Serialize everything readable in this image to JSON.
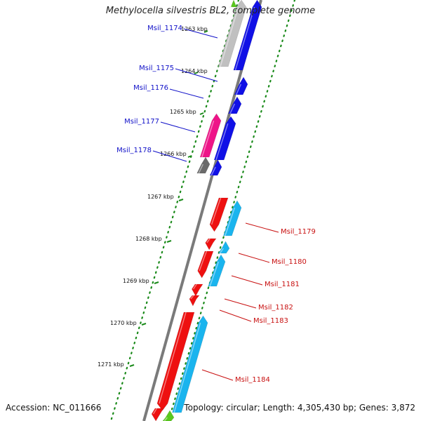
{
  "header": {
    "title": "Methylocella silvestris BL2, complete genome"
  },
  "footer": {
    "accession": "Accession: NC_011666",
    "summary": "Topology: circular; Length: 4,305,430 bp; Genes: 3,872"
  },
  "colors": {
    "backbone": "#8c8c8c",
    "forward_label": "#1010c8",
    "reverse_label": "#c81010",
    "tick": "#1a8a1a",
    "blue": "#1010e6",
    "cyan": "#1ab4ee",
    "red": "#ee1010",
    "magenta": "#ee1488",
    "gray": "#c0c0c0",
    "darkgray": "#6a6a6a",
    "green": "#5ac81e"
  },
  "kbp_ticks": {
    "inner": [
      "1263 kbp",
      "1264 kbp",
      "1265 kbp",
      "1266 kbp"
    ],
    "outer": [
      "1267 kbp",
      "1268 kbp",
      "1269 kbp",
      "1270 kbp",
      "1271 kbp"
    ]
  },
  "genes_top": [
    "Msil_1174",
    "Msil_1175",
    "Msil_1176",
    "Msil_1177",
    "Msil_1178"
  ],
  "genes_bottom": [
    "Msil_1179",
    "Msil_1180",
    "Msil_1181",
    "Msil_1182",
    "Msil_1183",
    "Msil_1184"
  ]
}
